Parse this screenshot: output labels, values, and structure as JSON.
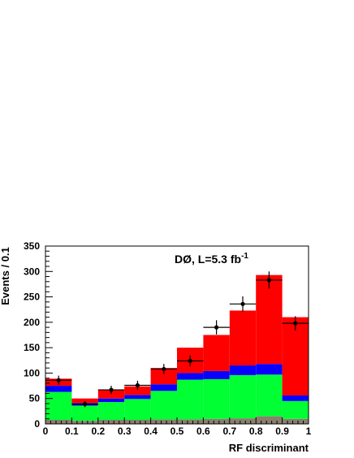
{
  "chart_data": {
    "type": "bar",
    "stacked": true,
    "title": "",
    "annotation": "DØ, L=5.3 fb",
    "annotation_sup": "-1",
    "xlabel": "RF discriminant",
    "ylabel": "Events / 0.1",
    "xlim": [
      0,
      1
    ],
    "ylim": [
      0,
      350
    ],
    "x_ticks": [
      "0",
      "0.1",
      "0.2",
      "0.3",
      "0.4",
      "0.5",
      "0.6",
      "0.7",
      "0.8",
      "0.9",
      "1"
    ],
    "y_ticks": [
      "0",
      "50",
      "100",
      "150",
      "200",
      "250",
      "300",
      "350"
    ],
    "bin_edges": [
      0,
      0.1,
      0.2,
      0.3,
      0.4,
      0.5,
      0.6,
      0.7,
      0.8,
      0.9,
      1.0
    ],
    "series": [
      {
        "color": "#8a7f6e",
        "values": [
          8,
          6,
          8,
          8,
          9,
          9,
          10,
          11,
          15,
          10
        ]
      },
      {
        "color": "#00ff33",
        "values": [
          55,
          30,
          35,
          41,
          56,
          78,
          78,
          85,
          82,
          35
        ]
      },
      {
        "color": "#0a00ff",
        "values": [
          12,
          5,
          7,
          8,
          13,
          13,
          16,
          19,
          21,
          11
        ]
      },
      {
        "color": "#ff0000",
        "values": [
          14,
          9,
          17,
          17,
          32,
          50,
          71,
          108,
          175,
          154
        ]
      }
    ],
    "data_points": {
      "x": [
        0.05,
        0.15,
        0.25,
        0.35,
        0.45,
        0.55,
        0.65,
        0.75,
        0.85,
        0.95
      ],
      "y": [
        86,
        39,
        67,
        76,
        108,
        124,
        190,
        236,
        283,
        198
      ],
      "yerr": [
        9,
        6,
        8,
        9,
        10,
        11,
        14,
        15,
        17,
        14
      ]
    },
    "grid": false,
    "legend": null
  }
}
